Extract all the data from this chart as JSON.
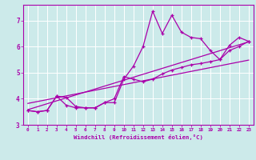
{
  "xlabel": "Windchill (Refroidissement éolien,°C)",
  "bg_color": "#cceaea",
  "grid_color": "#ffffff",
  "line_color": "#aa00aa",
  "xlim": [
    -0.5,
    23.5
  ],
  "ylim": [
    3.0,
    7.6
  ],
  "xticks": [
    0,
    1,
    2,
    3,
    4,
    5,
    6,
    7,
    8,
    9,
    10,
    11,
    12,
    13,
    14,
    15,
    16,
    17,
    18,
    19,
    20,
    21,
    22,
    23
  ],
  "yticks": [
    3,
    4,
    5,
    6,
    7
  ],
  "series1_x": [
    0,
    1,
    2,
    3,
    4,
    5,
    6,
    7,
    8,
    9,
    10,
    11,
    12,
    13,
    14,
    15,
    16,
    17,
    18,
    19,
    20,
    21,
    22,
    23
  ],
  "series1_y": [
    3.55,
    3.5,
    3.55,
    4.1,
    4.05,
    3.7,
    3.65,
    3.65,
    3.85,
    3.85,
    4.75,
    5.25,
    6.0,
    7.35,
    6.5,
    7.2,
    6.55,
    6.35,
    6.3,
    5.85,
    5.5,
    6.05,
    6.35,
    6.2
  ],
  "series2_x": [
    0,
    1,
    2,
    3,
    4,
    5,
    6,
    7,
    8,
    9,
    10,
    11,
    12,
    13,
    14,
    15,
    16,
    17,
    18,
    19,
    20,
    21,
    22,
    23
  ],
  "series2_y": [
    3.55,
    3.5,
    3.55,
    4.1,
    3.75,
    3.65,
    3.65,
    3.65,
    3.85,
    4.0,
    4.85,
    4.75,
    4.65,
    4.75,
    4.95,
    5.1,
    5.2,
    5.3,
    5.35,
    5.42,
    5.5,
    5.85,
    6.0,
    6.2
  ],
  "trend1_x": [
    0,
    23
  ],
  "trend1_y": [
    3.58,
    6.18
  ],
  "trend2_x": [
    0,
    23
  ],
  "trend2_y": [
    3.82,
    5.48
  ]
}
